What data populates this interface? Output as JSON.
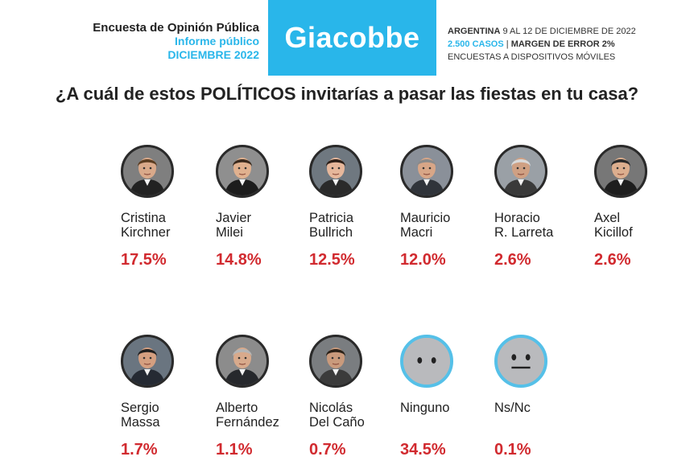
{
  "header": {
    "left_line1": "Encuesta de Opinión Pública",
    "left_line2": "Informe público",
    "left_line3": "DICIEMBRE 2022",
    "brand": "Giacobbe",
    "country": "ARGENTINA",
    "dates": " 9 AL 12 DE DICIEMBRE DE 2022",
    "cases": "2.500 CASOS",
    "separator": " | ",
    "margin": "MARGEN DE ERROR 2%",
    "method": "ENCUESTAS A DISPOSITIVOS MÓVILES"
  },
  "colors": {
    "brand_blue": "#29b6ea",
    "accent_red": "#d12a2f",
    "avatar_border": "#55c0e8"
  },
  "chart_data": {
    "type": "table",
    "title": "¿A cuál de estos POLÍTICOS invitarías a pasar las fiestas en tu casa?",
    "categories": [
      "Cristina Kirchner",
      "Javier Milei",
      "Patricia Bullrich",
      "Mauricio Macri",
      "Horacio R. Larreta",
      "Axel Kicillof",
      "Sergio Massa",
      "Alberto Fernández",
      "Nicolás Del Caño",
      "Ninguno",
      "Ns/Nc"
    ],
    "values": [
      17.5,
      14.8,
      12.5,
      12.0,
      2.6,
      2.6,
      1.7,
      1.1,
      0.7,
      34.5,
      0.1
    ],
    "unit": "%"
  },
  "items": [
    {
      "line1": "Cristina",
      "line2": "Kirchner",
      "pct": "17.5%",
      "icon": "person-photo-icon"
    },
    {
      "line1": "Javier",
      "line2": "Milei",
      "pct": "14.8%",
      "icon": "person-photo-icon"
    },
    {
      "line1": "Patricia",
      "line2": "Bullrich",
      "pct": "12.5%",
      "icon": "person-photo-icon"
    },
    {
      "line1": "Mauricio",
      "line2": "Macri",
      "pct": "12.0%",
      "icon": "person-photo-icon"
    },
    {
      "line1": "Horacio",
      "line2": "R. Larreta",
      "pct": "2.6%",
      "icon": "person-photo-icon"
    },
    {
      "line1": "Axel",
      "line2": "Kicillof",
      "pct": "2.6%",
      "icon": "person-photo-icon"
    },
    {
      "line1": "Sergio",
      "line2": "Massa",
      "pct": "1.7%",
      "icon": "person-photo-icon"
    },
    {
      "line1": "Alberto",
      "line2": "Fernández",
      "pct": "1.1%",
      "icon": "person-photo-icon"
    },
    {
      "line1": "Nicolás",
      "line2": "Del Caño",
      "pct": "0.7%",
      "icon": "person-photo-icon"
    },
    {
      "line1": "Ninguno",
      "line2": "",
      "pct": "34.5%",
      "icon": "blank-face-icon"
    },
    {
      "line1": "Ns/Nc",
      "line2": "",
      "pct": "0.1%",
      "icon": "neutral-face-icon"
    }
  ]
}
